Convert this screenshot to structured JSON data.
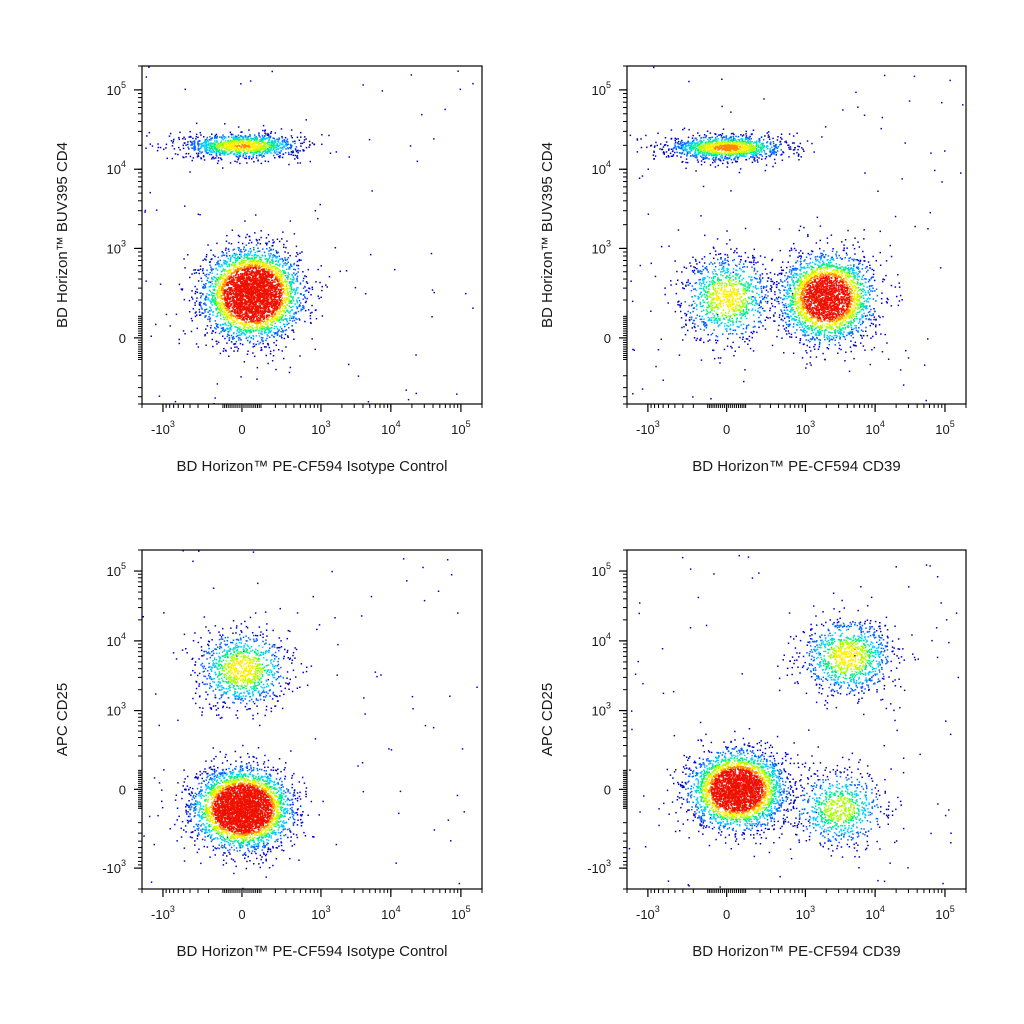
{
  "chart_data": [
    {
      "type": "scatter",
      "xlabel": "BD Horizon™ PE-CF594 Isotype Control",
      "ylabel": "BD Horizon™ BUV395 CD4",
      "x_scale": "biexponential",
      "y_scale": "biexponential",
      "x_ticks": [
        {
          "base": "-10",
          "exp": "3"
        },
        {
          "base": "0",
          "exp": ""
        },
        {
          "base": "10",
          "exp": "3"
        },
        {
          "base": "10",
          "exp": "4"
        },
        {
          "base": "10",
          "exp": "5"
        }
      ],
      "y_ticks": [
        {
          "base": "0",
          "exp": ""
        },
        {
          "base": "10",
          "exp": "3"
        },
        {
          "base": "10",
          "exp": "4"
        },
        {
          "base": "10",
          "exp": "5"
        }
      ],
      "xlim": [
        -2000,
        200000
      ],
      "ylim": [
        -500,
        200000
      ],
      "grid": false,
      "populations": [
        {
          "name": "",
          "center_x": 50,
          "center_y": 250,
          "fraction": 0.78
        },
        {
          "name": "",
          "center_x": 0,
          "center_y": 20000,
          "fraction": 0.22
        }
      ]
    },
    {
      "type": "scatter",
      "xlabel": "BD Horizon™ PE-CF594 CD39",
      "ylabel": "BD Horizon™ BUV395 CD4",
      "x_scale": "biexponential",
      "y_scale": "biexponential",
      "x_ticks": [
        {
          "base": "-10",
          "exp": "3"
        },
        {
          "base": "0",
          "exp": ""
        },
        {
          "base": "10",
          "exp": "3"
        },
        {
          "base": "10",
          "exp": "4"
        },
        {
          "base": "10",
          "exp": "5"
        }
      ],
      "y_ticks": [
        {
          "base": "0",
          "exp": ""
        },
        {
          "base": "10",
          "exp": "3"
        },
        {
          "base": "10",
          "exp": "4"
        },
        {
          "base": "10",
          "exp": "5"
        }
      ],
      "xlim": [
        -2000,
        200000
      ],
      "ylim": [
        -500,
        200000
      ],
      "grid": false,
      "populations": [
        {
          "name": "",
          "center_x": 2000,
          "center_y": 220,
          "fraction": 0.55
        },
        {
          "name": "",
          "center_x": 0,
          "center_y": 220,
          "fraction": 0.2
        },
        {
          "name": "",
          "center_x": 0,
          "center_y": 19000,
          "fraction": 0.25
        }
      ]
    },
    {
      "type": "scatter",
      "xlabel": "BD Horizon™ PE-CF594 Isotype Control",
      "ylabel": "APC CD25",
      "x_scale": "biexponential",
      "y_scale": "biexponential",
      "x_ticks": [
        {
          "base": "-10",
          "exp": "3"
        },
        {
          "base": "0",
          "exp": ""
        },
        {
          "base": "10",
          "exp": "3"
        },
        {
          "base": "10",
          "exp": "4"
        },
        {
          "base": "10",
          "exp": "5"
        }
      ],
      "y_ticks": [
        {
          "base": "-10",
          "exp": "3"
        },
        {
          "base": "0",
          "exp": ""
        },
        {
          "base": "10",
          "exp": "3"
        },
        {
          "base": "10",
          "exp": "4"
        },
        {
          "base": "10",
          "exp": "5"
        }
      ],
      "xlim": [
        -2000,
        200000
      ],
      "ylim": [
        -2000,
        200000
      ],
      "grid": false,
      "populations": [
        {
          "name": "",
          "center_x": 0,
          "center_y": -100,
          "fraction": 0.8
        },
        {
          "name": "",
          "center_x": 0,
          "center_y": 4000,
          "fraction": 0.2
        }
      ]
    },
    {
      "type": "scatter",
      "xlabel": "BD Horizon™ PE-CF594 CD39",
      "ylabel": "APC CD25",
      "x_scale": "biexponential",
      "y_scale": "biexponential",
      "x_ticks": [
        {
          "base": "-10",
          "exp": "3"
        },
        {
          "base": "0",
          "exp": ""
        },
        {
          "base": "10",
          "exp": "3"
        },
        {
          "base": "10",
          "exp": "4"
        },
        {
          "base": "10",
          "exp": "5"
        }
      ],
      "y_ticks": [
        {
          "base": "-10",
          "exp": "3"
        },
        {
          "base": "0",
          "exp": ""
        },
        {
          "base": "10",
          "exp": "3"
        },
        {
          "base": "10",
          "exp": "4"
        },
        {
          "base": "10",
          "exp": "5"
        }
      ],
      "xlim": [
        -2000,
        200000
      ],
      "ylim": [
        -2000,
        200000
      ],
      "grid": false,
      "populations": [
        {
          "name": "",
          "center_x": 50,
          "center_y": 0,
          "fraction": 0.65
        },
        {
          "name": "",
          "center_x": 4000,
          "center_y": 6000,
          "fraction": 0.2
        },
        {
          "name": "",
          "center_x": 3000,
          "center_y": -100,
          "fraction": 0.15
        }
      ]
    }
  ],
  "colors": {
    "density_scale": [
      "#0000cc",
      "#0066ff",
      "#00ccff",
      "#00ee88",
      "#aaff00",
      "#ffee00",
      "#ff8800",
      "#ee1100"
    ],
    "axis": "#000000"
  }
}
